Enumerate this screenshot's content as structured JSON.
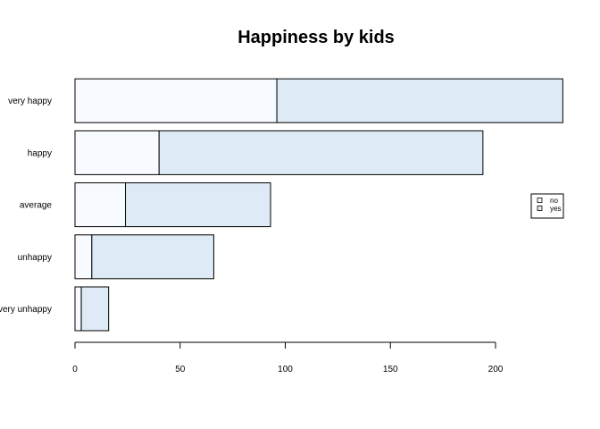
{
  "chart_data": {
    "type": "bar",
    "orientation": "horizontal",
    "stacked": true,
    "title": "Happiness by kids",
    "xlabel": "",
    "ylabel": "",
    "categories": [
      "very unhappy",
      "unhappy",
      "average",
      "happy",
      "very happy"
    ],
    "series": [
      {
        "name": "no",
        "color": "#f7fbff",
        "values": [
          3,
          8,
          24,
          40,
          96
        ]
      },
      {
        "name": "yes",
        "color": "#deebf7",
        "values": [
          13,
          58,
          69,
          154,
          136
        ]
      }
    ],
    "xlim": [
      0,
      232
    ],
    "xticks": [
      0,
      50,
      100,
      150,
      200
    ],
    "grid": false,
    "legend_position": "right"
  }
}
